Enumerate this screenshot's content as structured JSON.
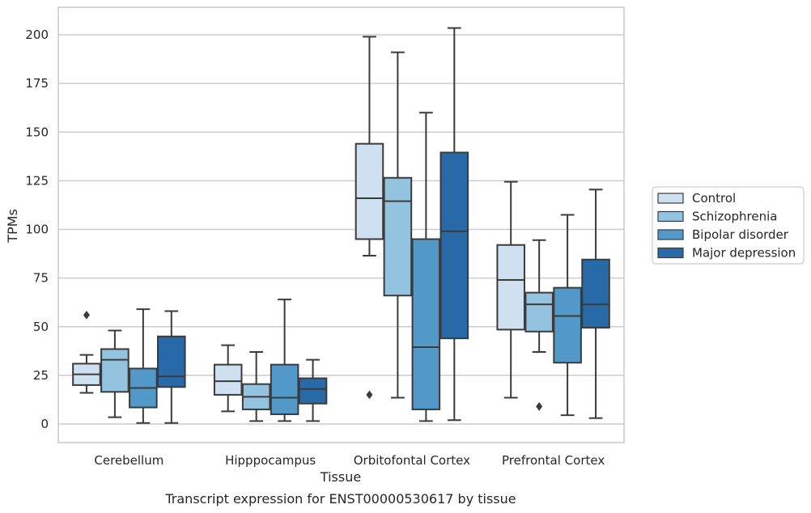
{
  "caption": "Transcript expression for ENST00000530617 by tissue",
  "chart_data": {
    "type": "boxplot",
    "xlabel": "Tissue",
    "ylabel": "TPMs",
    "ylim": [
      -10,
      215
    ],
    "yticks": [
      0,
      25,
      50,
      75,
      100,
      125,
      150,
      175,
      200
    ],
    "grid": "horizontal",
    "legend_position": "right",
    "categories": [
      "Cerebellum",
      "Hipppocampus",
      "Orbitofontal Cortex",
      "Prefrontal Cortex"
    ],
    "series": [
      {
        "name": "Control",
        "color": "#cfe0f1",
        "boxes": [
          {
            "whislo": 16,
            "q1": 20,
            "med": 25.5,
            "q3": 31,
            "whishi": 35.5,
            "fliers": [
              56
            ]
          },
          {
            "whislo": 6.5,
            "q1": 15,
            "med": 22,
            "q3": 30.5,
            "whishi": 40.5,
            "fliers": []
          },
          {
            "whislo": 86.5,
            "q1": 95,
            "med": 116,
            "q3": 144,
            "whishi": 199,
            "fliers": [
              15
            ]
          },
          {
            "whislo": 13.5,
            "q1": 48.5,
            "med": 74,
            "q3": 92,
            "whishi": 124.5,
            "fliers": []
          }
        ]
      },
      {
        "name": "Schizophrenia",
        "color": "#93c3df",
        "boxes": [
          {
            "whislo": 3.5,
            "q1": 16.5,
            "med": 33,
            "q3": 38.5,
            "whishi": 48,
            "fliers": []
          },
          {
            "whislo": 1.5,
            "q1": 7.5,
            "med": 14,
            "q3": 20.5,
            "whishi": 37,
            "fliers": []
          },
          {
            "whislo": 13.5,
            "q1": 66,
            "med": 114.5,
            "q3": 126.5,
            "whishi": 191,
            "fliers": []
          },
          {
            "whislo": 37,
            "q1": 47.5,
            "med": 61.5,
            "q3": 67.5,
            "whishi": 94.5,
            "fliers": [
              9
            ]
          }
        ]
      },
      {
        "name": "Bipolar disorder",
        "color": "#5299c9",
        "boxes": [
          {
            "whislo": 0.5,
            "q1": 8.5,
            "med": 18.5,
            "q3": 28.5,
            "whishi": 59,
            "fliers": []
          },
          {
            "whislo": 1.5,
            "q1": 5,
            "med": 13.5,
            "q3": 30.5,
            "whishi": 64,
            "fliers": []
          },
          {
            "whislo": 1.5,
            "q1": 7.5,
            "med": 39.5,
            "q3": 95,
            "whishi": 160,
            "fliers": []
          },
          {
            "whislo": 4.5,
            "q1": 31.5,
            "med": 55.5,
            "q3": 70,
            "whishi": 107.5,
            "fliers": []
          }
        ]
      },
      {
        "name": "Major depression",
        "color": "#2869a8",
        "boxes": [
          {
            "whislo": 0.5,
            "q1": 19,
            "med": 24.5,
            "q3": 45,
            "whishi": 58,
            "fliers": []
          },
          {
            "whislo": 1.5,
            "q1": 10.5,
            "med": 18,
            "q3": 23.5,
            "whishi": 33,
            "fliers": []
          },
          {
            "whislo": 2,
            "q1": 44,
            "med": 99,
            "q3": 139.5,
            "whishi": 203.5,
            "fliers": []
          },
          {
            "whislo": 3,
            "q1": 49.5,
            "med": 61.5,
            "q3": 84.5,
            "whishi": 120.5,
            "fliers": []
          }
        ]
      }
    ]
  }
}
